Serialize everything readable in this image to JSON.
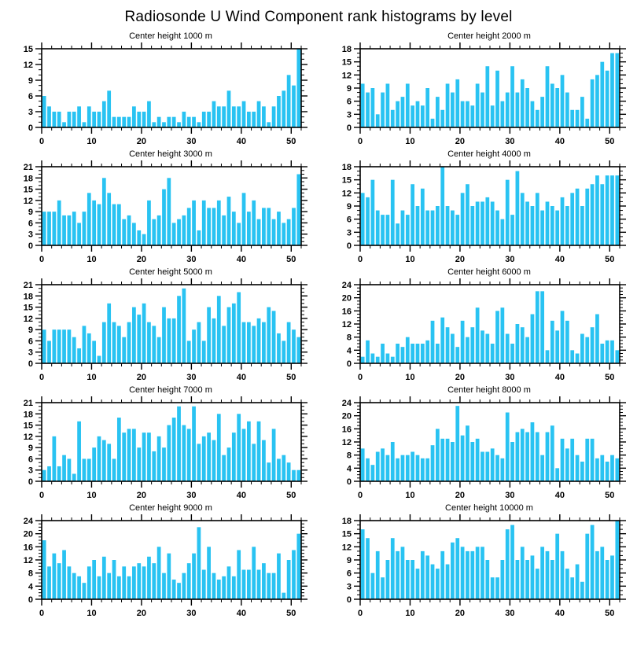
{
  "page": {
    "title": "Radiosonde U Wind Component rank histograms by level"
  },
  "colors": {
    "bar": "#29C3F2",
    "axis": "#000000"
  },
  "axis": {
    "xlim": [
      0,
      52
    ],
    "x_ticks": [
      0,
      10,
      20,
      30,
      40,
      50
    ],
    "x_minor_step": 2,
    "grid": false,
    "legend": false
  },
  "chart_data": [
    {
      "type": "bar",
      "title": "Center height 1000 m",
      "ylim": [
        0,
        15
      ],
      "ystep": 3,
      "values": [
        6,
        4,
        3,
        3,
        1,
        3,
        3,
        4,
        1,
        4,
        3,
        3,
        5,
        7,
        2,
        2,
        2,
        2,
        4,
        3,
        3,
        5,
        1,
        2,
        1,
        2,
        2,
        1,
        3,
        2,
        2,
        1,
        3,
        3,
        5,
        4,
        4,
        7,
        4,
        4,
        5,
        3,
        3,
        5,
        4,
        1,
        4,
        6,
        7,
        10,
        8,
        15
      ]
    },
    {
      "type": "bar",
      "title": "Center height 2000 m",
      "ylim": [
        0,
        18
      ],
      "ystep": 3,
      "values": [
        10,
        8,
        9,
        3,
        8,
        10,
        4,
        6,
        7,
        10,
        5,
        6,
        5,
        9,
        2,
        7,
        4,
        10,
        8,
        11,
        6,
        6,
        5,
        10,
        8,
        14,
        5,
        13,
        6,
        8,
        14,
        8,
        11,
        9,
        6,
        4,
        7,
        14,
        10,
        9,
        12,
        8,
        4,
        4,
        7,
        2,
        11,
        12,
        15,
        13,
        17,
        17
      ]
    },
    {
      "type": "bar",
      "title": "Center height 3000 m",
      "ylim": [
        0,
        21
      ],
      "ystep": 3,
      "values": [
        9,
        9,
        9,
        12,
        8,
        8,
        9,
        6,
        9,
        14,
        12,
        11,
        18,
        14,
        11,
        11,
        7,
        8,
        6,
        4,
        3,
        12,
        7,
        8,
        15,
        18,
        6,
        7,
        8,
        10,
        12,
        4,
        12,
        10,
        10,
        12,
        8,
        13,
        9,
        6,
        14,
        9,
        12,
        7,
        10,
        10,
        7,
        9,
        6,
        7,
        10,
        19
      ]
    },
    {
      "type": "bar",
      "title": "Center height 4000 m",
      "ylim": [
        0,
        18
      ],
      "ystep": 3,
      "values": [
        12,
        11,
        15,
        8,
        7,
        7,
        15,
        5,
        8,
        7,
        14,
        9,
        13,
        8,
        8,
        9,
        18,
        9,
        8,
        7,
        12,
        14,
        9,
        10,
        10,
        11,
        10,
        8,
        6,
        15,
        7,
        17,
        12,
        10,
        9,
        12,
        8,
        10,
        9,
        8,
        11,
        9,
        12,
        13,
        9,
        13,
        14,
        16,
        14,
        16,
        16,
        16
      ]
    },
    {
      "type": "bar",
      "title": "Center height 5000 m",
      "ylim": [
        0,
        21
      ],
      "ystep": 3,
      "values": [
        9,
        6,
        9,
        9,
        9,
        9,
        7,
        4,
        10,
        8,
        6,
        2,
        11,
        16,
        11,
        10,
        7,
        11,
        15,
        13,
        16,
        11,
        10,
        7,
        15,
        12,
        12,
        18,
        20,
        6,
        9,
        11,
        6,
        15,
        12,
        18,
        10,
        15,
        16,
        19,
        11,
        11,
        10,
        12,
        11,
        15,
        14,
        8,
        6,
        11,
        9,
        7
      ]
    },
    {
      "type": "bar",
      "title": "Center height 6000 m",
      "ylim": [
        0,
        24
      ],
      "ystep": 4,
      "values": [
        2,
        7,
        3,
        2,
        6,
        3,
        2,
        6,
        5,
        8,
        6,
        6,
        6,
        7,
        13,
        6,
        14,
        11,
        9,
        5,
        13,
        8,
        11,
        17,
        10,
        9,
        6,
        16,
        17,
        9,
        6,
        12,
        11,
        8,
        15,
        22,
        22,
        4,
        13,
        10,
        16,
        13,
        4,
        3,
        9,
        8,
        11,
        15,
        6,
        7,
        7,
        4
      ]
    },
    {
      "type": "bar",
      "title": "Center height 7000 m",
      "ylim": [
        0,
        21
      ],
      "ystep": 3,
      "values": [
        3,
        4,
        12,
        4,
        7,
        6,
        2,
        16,
        6,
        6,
        9,
        12,
        11,
        10,
        6,
        17,
        13,
        14,
        14,
        9,
        13,
        13,
        8,
        12,
        9,
        15,
        17,
        20,
        15,
        14,
        20,
        10,
        12,
        13,
        11,
        18,
        7,
        9,
        13,
        18,
        14,
        16,
        10,
        16,
        11,
        5,
        14,
        6,
        7,
        5,
        3,
        3
      ]
    },
    {
      "type": "bar",
      "title": "Center height 8000 m",
      "ylim": [
        0,
        24
      ],
      "ystep": 4,
      "values": [
        10,
        7,
        5,
        9,
        10,
        8,
        12,
        7,
        8,
        8,
        9,
        8,
        7,
        7,
        11,
        16,
        13,
        13,
        12,
        23,
        14,
        17,
        12,
        13,
        9,
        9,
        10,
        8,
        7,
        21,
        12,
        15,
        16,
        15,
        18,
        15,
        8,
        15,
        17,
        4,
        13,
        10,
        13,
        8,
        6,
        13,
        13,
        7,
        8,
        6,
        8,
        7
      ]
    },
    {
      "type": "bar",
      "title": "Center height 9000 m",
      "ylim": [
        0,
        24
      ],
      "ystep": 4,
      "values": [
        18,
        10,
        14,
        11,
        15,
        10,
        8,
        7,
        5,
        10,
        12,
        7,
        13,
        8,
        12,
        7,
        10,
        7,
        10,
        11,
        10,
        13,
        11,
        16,
        8,
        14,
        6,
        5,
        8,
        11,
        14,
        22,
        9,
        16,
        8,
        6,
        7,
        10,
        7,
        15,
        9,
        9,
        16,
        9,
        11,
        8,
        8,
        14,
        2,
        12,
        15,
        20
      ]
    },
    {
      "type": "bar",
      "title": "Center height 10000 m",
      "ylim": [
        0,
        18
      ],
      "ystep": 3,
      "values": [
        16,
        14,
        6,
        11,
        5,
        9,
        14,
        11,
        12,
        9,
        9,
        7,
        11,
        10,
        8,
        7,
        11,
        8,
        13,
        14,
        12,
        11,
        11,
        12,
        12,
        9,
        5,
        5,
        9,
        16,
        17,
        9,
        12,
        9,
        10,
        7,
        12,
        11,
        9,
        15,
        11,
        7,
        5,
        8,
        4,
        15,
        17,
        11,
        12,
        9,
        10,
        18
      ]
    }
  ]
}
